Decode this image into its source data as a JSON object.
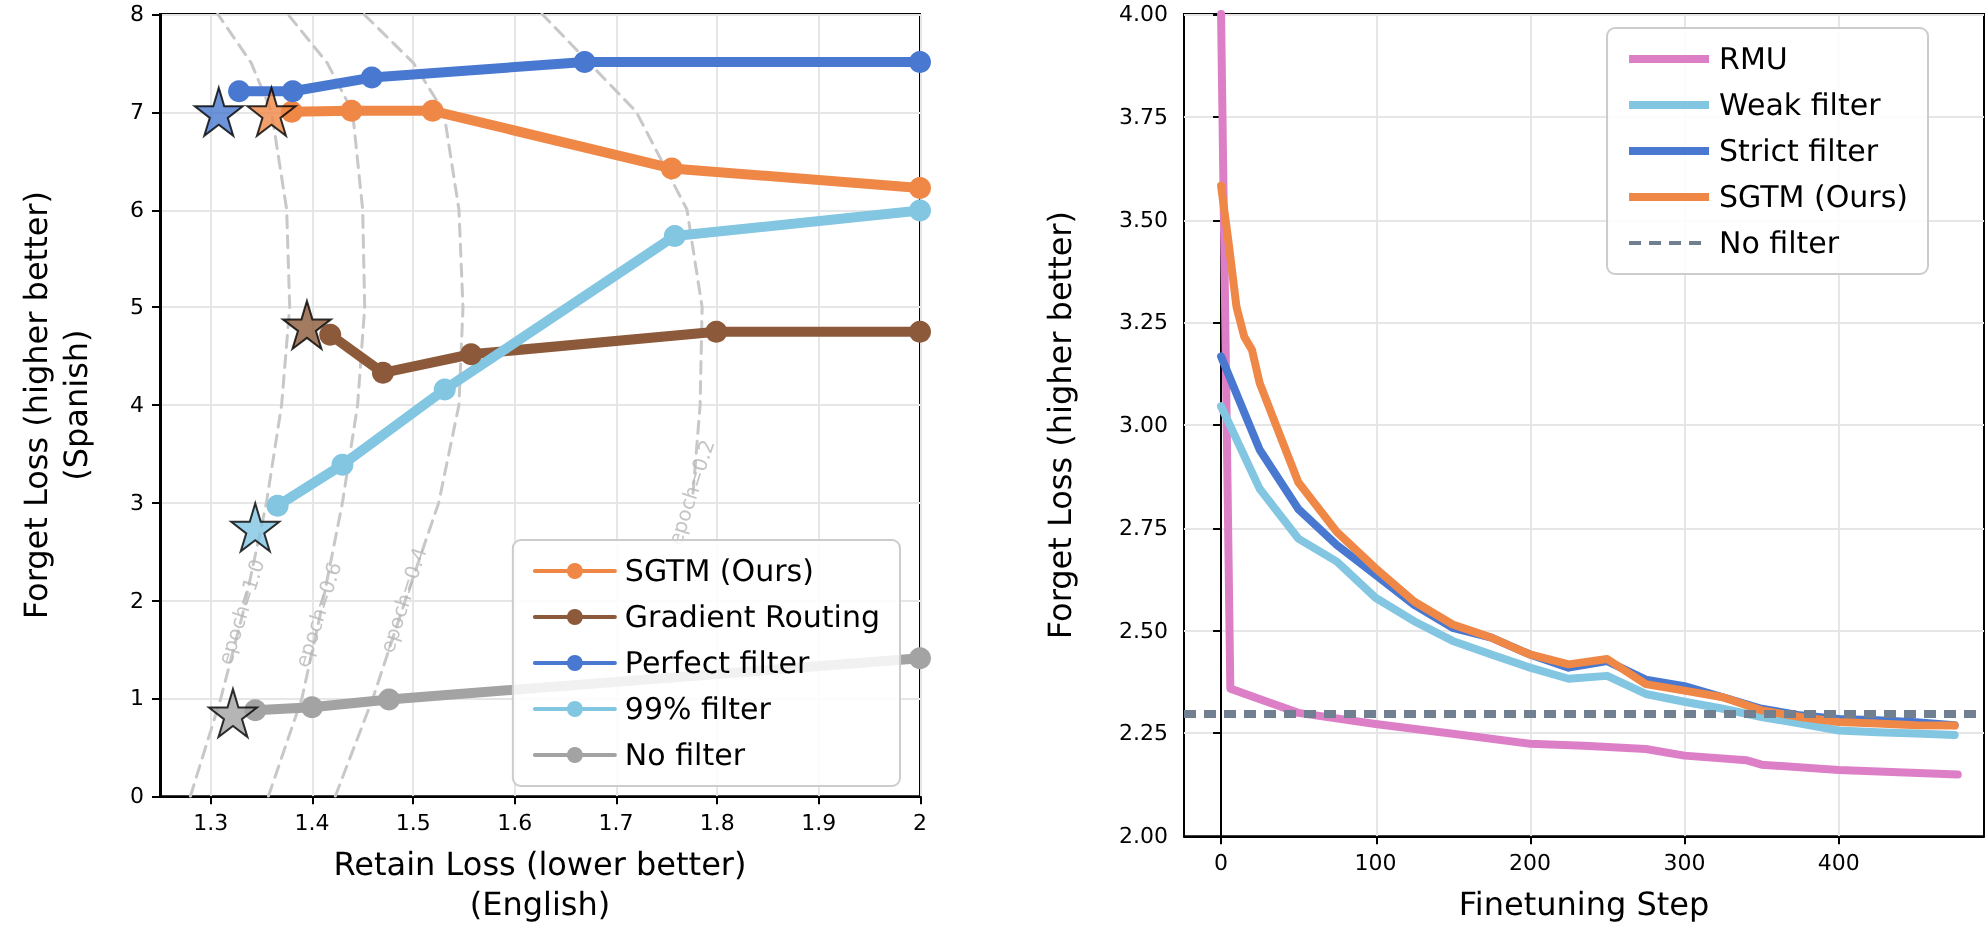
{
  "chart_data": [
    {
      "type": "line",
      "xlabel": "Retain Loss (lower better)\n(English)",
      "ylabel": "Forget Loss (higher better)\n(Spanish)",
      "xlim": [
        1.25,
        2.0
      ],
      "ylim": [
        0,
        8
      ],
      "xticks": [
        1.3,
        1.4,
        1.5,
        1.6,
        1.7,
        1.8,
        1.9,
        2.0
      ],
      "yticks": [
        0,
        1,
        2,
        3,
        4,
        5,
        6,
        7,
        8
      ],
      "grid": true,
      "legend": "bottom right",
      "marker": "circle",
      "line_style": "solid",
      "annotations": [
        {
          "text": "epoch=1.0",
          "x": 1.332,
          "y": 1.88
        },
        {
          "text": "epoch=0.6",
          "x": 1.408,
          "y": 1.85
        },
        {
          "text": "epoch=0.4",
          "x": 1.492,
          "y": 2.0
        },
        {
          "text": "epoch=0.2",
          "x": 1.776,
          "y": 3.1
        }
      ],
      "series": [
        {
          "color": "#c8c8c8",
          "line_style": "dashed",
          "marker": "none",
          "x": [
            1.28,
            1.31,
            1.332,
            1.355,
            1.37,
            1.378,
            1.375,
            1.36,
            1.34,
            1.307
          ],
          "values": [
            0,
            1,
            1.88,
            3,
            4,
            5,
            6,
            7,
            7.5,
            8
          ]
        },
        {
          "color": "#c8c8c8",
          "line_style": "dashed",
          "marker": "none",
          "x": [
            1.357,
            1.39,
            1.408,
            1.43,
            1.445,
            1.452,
            1.45,
            1.44,
            1.415,
            1.376
          ],
          "values": [
            0,
            1,
            1.85,
            3,
            4,
            5,
            6,
            7,
            7.5,
            8
          ]
        },
        {
          "color": "#c8c8c8",
          "line_style": "dashed",
          "marker": "none",
          "x": [
            1.423,
            1.46,
            1.492,
            1.525,
            1.545,
            1.549,
            1.545,
            1.53,
            1.5,
            1.451
          ],
          "values": [
            0,
            1,
            2,
            3,
            4,
            5,
            6,
            7,
            7.5,
            8
          ]
        },
        {
          "color": "#c8c8c8",
          "line_style": "dashed",
          "marker": "none",
          "x": [
            1.776,
            1.783,
            1.785,
            1.77,
            1.72,
            1.627
          ],
          "values": [
            3.1,
            4,
            5,
            6,
            7,
            8
          ]
        },
        {
          "name": "SGTM (Ours)",
          "color": "#ef8747",
          "x": [
            1.38,
            1.439,
            1.519,
            1.755,
            2.0
          ],
          "values": [
            7.0,
            7.01,
            7.01,
            6.42,
            6.22
          ]
        },
        {
          "name": "Gradient Routing",
          "color": "#8c5a3a",
          "x": [
            1.418,
            1.47,
            1.557,
            1.799,
            2.0
          ],
          "values": [
            4.72,
            4.33,
            4.52,
            4.75,
            4.75
          ]
        },
        {
          "name": "Perfect filter",
          "color": "#4878d0",
          "x": [
            1.328,
            1.381,
            1.459,
            1.669,
            2.0
          ],
          "values": [
            7.21,
            7.21,
            7.35,
            7.51,
            7.51
          ]
        },
        {
          "name": "99% filter",
          "color": "#82c6e2",
          "x": [
            1.366,
            1.43,
            1.531,
            1.758,
            2.0
          ],
          "values": [
            2.97,
            3.39,
            4.16,
            5.73,
            5.99
          ]
        },
        {
          "name": "No filter",
          "color": "#a3a3a3",
          "x": [
            1.344,
            1.4,
            1.476,
            2.0
          ],
          "values": [
            0.88,
            0.91,
            0.99,
            1.41
          ]
        },
        {
          "type": "scatter",
          "marker": "star",
          "x": [
            1.308,
            1.36,
            1.395,
            1.344,
            1.322
          ],
          "values": [
            7.0,
            7.0,
            4.82,
            2.75,
            0.85
          ],
          "colors": [
            "#4878d0",
            "#ef8747",
            "#8c5a3a",
            "#82c6e2",
            "#a3a3a3"
          ]
        }
      ]
    },
    {
      "type": "line",
      "xlabel": "Finetuning Step",
      "ylabel": "Forget Loss (higher better)",
      "xlim": [
        -24,
        494
      ],
      "ylim": [
        2,
        4
      ],
      "xticks": [
        0,
        100,
        200,
        300,
        400
      ],
      "yticks": [
        {
          "value": 2,
          "label": "2.00"
        },
        {
          "value": 2.25,
          "label": "2.25"
        },
        {
          "value": 2.5,
          "label": "2.50"
        },
        {
          "value": 2.75,
          "label": "2.75"
        },
        {
          "value": 3,
          "label": "3.00"
        },
        {
          "value": 3.25,
          "label": "3.25"
        },
        {
          "value": 3.5,
          "label": "3.50"
        },
        {
          "value": 3.75,
          "label": "3.75"
        },
        {
          "value": 4,
          "label": "4.00"
        }
      ],
      "grid": true,
      "legend": "top right",
      "marker": "none",
      "line_style": "solid",
      "ref_lines": [
        {
          "axis": "y",
          "value": 2.3,
          "label": "No filter",
          "color": "#708090",
          "line_style": "dashed"
        }
      ],
      "series": [
        {
          "name": "RMU",
          "color": "#dd7fc6",
          "x": [
            0,
            6,
            50,
            100,
            150,
            200,
            235,
            275,
            300,
            340,
            350,
            400,
            477
          ],
          "values": [
            4.0,
            2.359,
            2.3,
            2.273,
            2.249,
            2.225,
            2.22,
            2.212,
            2.196,
            2.185,
            2.174,
            2.161,
            2.15
          ]
        },
        {
          "name": "Weak filter",
          "color": "#82c6e2",
          "x": [
            0,
            25,
            50,
            75,
            100,
            125,
            150,
            175,
            200,
            225,
            250,
            275,
            300,
            325,
            350,
            375,
            400,
            425,
            450,
            475
          ],
          "values": [
            3.046,
            2.845,
            2.724,
            2.668,
            2.58,
            2.523,
            2.475,
            2.442,
            2.41,
            2.383,
            2.39,
            2.346,
            2.327,
            2.31,
            2.29,
            2.274,
            2.257,
            2.253,
            2.25,
            2.246
          ]
        },
        {
          "name": "Strict filter",
          "color": "#4878d0",
          "x": [
            0,
            25,
            50,
            75,
            100,
            125,
            150,
            175,
            200,
            225,
            250,
            275,
            300,
            325,
            350,
            375,
            400,
            425,
            450,
            475
          ],
          "values": [
            3.167,
            2.94,
            2.796,
            2.708,
            2.636,
            2.563,
            2.507,
            2.483,
            2.442,
            2.41,
            2.426,
            2.381,
            2.365,
            2.338,
            2.31,
            2.294,
            2.285,
            2.282,
            2.277,
            2.27
          ]
        },
        {
          "name": "SGTM (Ours)",
          "color": "#ef8747",
          "x": [
            0,
            5,
            10,
            15,
            20,
            25,
            50,
            75,
            100,
            125,
            150,
            175,
            200,
            225,
            250,
            275,
            300,
            325,
            350,
            375,
            400,
            425,
            450,
            475
          ],
          "values": [
            3.582,
            3.44,
            3.287,
            3.215,
            3.183,
            3.102,
            2.861,
            2.74,
            2.652,
            2.571,
            2.515,
            2.483,
            2.442,
            2.418,
            2.431,
            2.37,
            2.354,
            2.338,
            2.306,
            2.29,
            2.278,
            2.274,
            2.27,
            2.269
          ]
        }
      ]
    }
  ]
}
